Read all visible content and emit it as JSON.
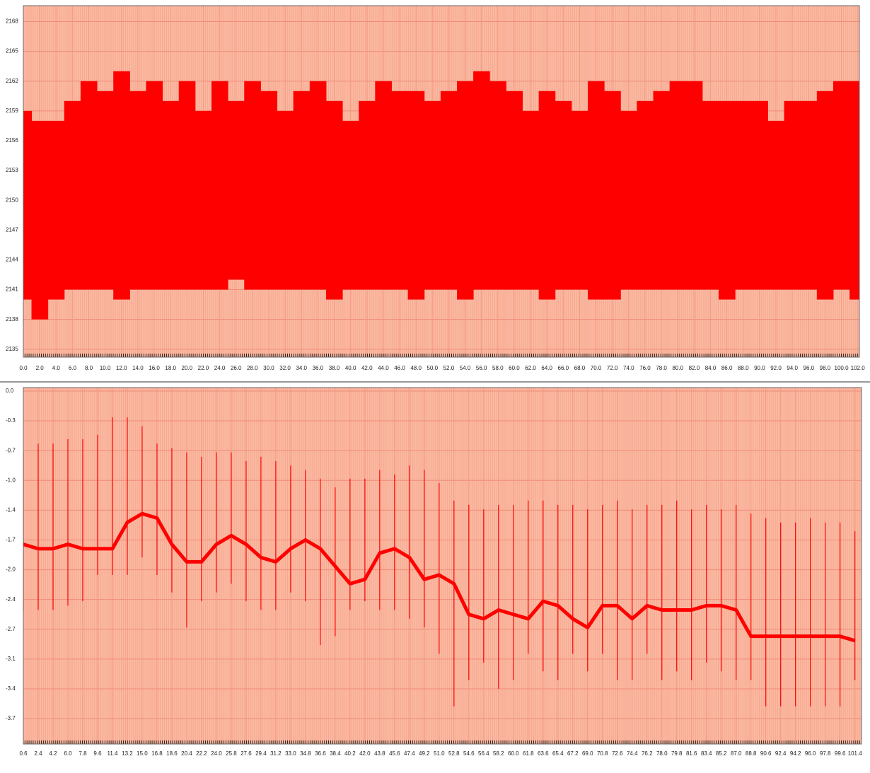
{
  "chart_data": [
    {
      "type": "range",
      "color": "#ff0000",
      "grid": true,
      "xlim": [
        0,
        102.2
      ],
      "ylim": [
        2134.2,
        2169.6
      ],
      "yticks": [
        2135,
        2138,
        2141,
        2144,
        2147,
        2150,
        2153,
        2156,
        2159,
        2162,
        2165,
        2168
      ],
      "xticks": [
        {
          "value": 0,
          "label": "0.0"
        },
        {
          "value": 2,
          "label": "2.0"
        },
        {
          "value": 4,
          "label": "4.0"
        },
        {
          "value": 6,
          "label": "6.0"
        },
        {
          "value": 8,
          "label": "8.0"
        },
        {
          "value": 10,
          "label": "10.0"
        },
        {
          "value": 12,
          "label": "12.0"
        },
        {
          "value": 14,
          "label": "14.0"
        },
        {
          "value": 16,
          "label": "16.0"
        },
        {
          "value": 18,
          "label": "18.0"
        },
        {
          "value": 20,
          "label": "20.0"
        },
        {
          "value": 22,
          "label": "22.0"
        },
        {
          "value": 24,
          "label": "24.0"
        },
        {
          "value": 26,
          "label": "26.0"
        },
        {
          "value": 28,
          "label": "28.0"
        },
        {
          "value": 30,
          "label": "30.0"
        },
        {
          "value": 32,
          "label": "32.0"
        },
        {
          "value": 34,
          "label": "34.0"
        },
        {
          "value": 36,
          "label": "36.0"
        },
        {
          "value": 38,
          "label": "38.0"
        },
        {
          "value": 40,
          "label": "40.0"
        },
        {
          "value": 42,
          "label": "42.0"
        },
        {
          "value": 44,
          "label": "44.0"
        },
        {
          "value": 46,
          "label": "46.0"
        },
        {
          "value": 48,
          "label": "48.0"
        },
        {
          "value": 50,
          "label": "50.0"
        },
        {
          "value": 52,
          "label": "52.0"
        },
        {
          "value": 54,
          "label": "54.0"
        },
        {
          "value": 56,
          "label": "56.0"
        },
        {
          "value": 58,
          "label": "58.0"
        },
        {
          "value": 60,
          "label": "60.0"
        },
        {
          "value": 62,
          "label": "62.0"
        },
        {
          "value": 64,
          "label": "64.0"
        },
        {
          "value": 66,
          "label": "66.0"
        },
        {
          "value": 68,
          "label": "68.0"
        },
        {
          "value": 70,
          "label": "70.0"
        },
        {
          "value": 72,
          "label": "72.0"
        },
        {
          "value": 74,
          "label": "74.0"
        },
        {
          "value": 76,
          "label": "76.0"
        },
        {
          "value": 78,
          "label": "78.0"
        },
        {
          "value": 80,
          "label": "80.0"
        },
        {
          "value": 82,
          "label": "82.0"
        },
        {
          "value": 84,
          "label": "84.0"
        },
        {
          "value": 86,
          "label": "86.0"
        },
        {
          "value": 88,
          "label": "88.0"
        },
        {
          "value": 90,
          "label": "90.0"
        },
        {
          "value": 92,
          "label": "92.0"
        },
        {
          "value": 94,
          "label": "94.0"
        },
        {
          "value": 96,
          "label": "96.0"
        },
        {
          "value": 98,
          "label": "98.0"
        },
        {
          "value": 100,
          "label": "100.0"
        },
        {
          "value": 102,
          "label": "102.0"
        }
      ],
      "x": [
        0,
        2,
        4,
        6,
        8,
        10,
        12,
        14,
        16,
        18,
        20,
        22,
        24,
        26,
        28,
        30,
        32,
        34,
        36,
        38,
        40,
        42,
        44,
        46,
        48,
        50,
        52,
        54,
        56,
        58,
        60,
        62,
        64,
        66,
        68,
        70,
        72,
        74,
        76,
        78,
        80,
        82,
        84,
        86,
        88,
        90,
        92,
        94,
        96,
        98,
        100,
        102
      ],
      "high": [
        2159,
        2158,
        2158,
        2160,
        2162,
        2161,
        2163,
        2161,
        2162,
        2160,
        2162,
        2159,
        2162,
        2160,
        2162,
        2161,
        2159,
        2161,
        2162,
        2160,
        2158,
        2160,
        2162,
        2161,
        2161,
        2160,
        2161,
        2162,
        2163,
        2162,
        2161,
        2159,
        2161,
        2160,
        2159,
        2162,
        2161,
        2159,
        2160,
        2161,
        2162,
        2162,
        2160,
        2160,
        2160,
        2160,
        2158,
        2160,
        2160,
        2161,
        2162,
        2162
      ],
      "low": [
        2140,
        2138,
        2140,
        2141,
        2141,
        2141,
        2140,
        2141,
        2141,
        2141,
        2141,
        2141,
        2141,
        2142,
        2141,
        2141,
        2141,
        2141,
        2141,
        2140,
        2141,
        2141,
        2141,
        2141,
        2140,
        2141,
        2141,
        2140,
        2141,
        2141,
        2141,
        2141,
        2140,
        2141,
        2141,
        2140,
        2140,
        2141,
        2141,
        2141,
        2141,
        2141,
        2141,
        2140,
        2141,
        2141,
        2141,
        2141,
        2141,
        2140,
        2141,
        2140
      ]
    },
    {
      "type": "spike",
      "color": "#ff0000",
      "grid": true,
      "xlim": [
        0.6,
        102.2
      ],
      "ylim": [
        -4.03,
        0.04
      ],
      "yticks": [
        {
          "value": 0,
          "label": "0.0"
        },
        {
          "value": -0.34,
          "label": "-0.3"
        },
        {
          "value": -0.68,
          "label": "-0.7"
        },
        {
          "value": -1.02,
          "label": "-1.0"
        },
        {
          "value": -1.36,
          "label": "-1.4"
        },
        {
          "value": -1.7,
          "label": "-1.7"
        },
        {
          "value": -2.04,
          "label": "-2.0"
        },
        {
          "value": -2.38,
          "label": "-2.4"
        },
        {
          "value": -2.72,
          "label": "-2.7"
        },
        {
          "value": -3.06,
          "label": "-3.1"
        },
        {
          "value": -3.4,
          "label": "-3.4"
        },
        {
          "value": -3.74,
          "label": "-3.7"
        }
      ],
      "xticks": [
        0.6,
        2.4,
        4.2,
        {
          "value": 6,
          "label": "6.0"
        },
        7.8,
        9.6,
        11.4,
        13.2,
        {
          "value": 15,
          "label": "15.0"
        },
        16.8,
        18.6,
        20.4,
        22.2,
        {
          "value": 24,
          "label": "24.0"
        },
        25.8,
        27.6,
        29.4,
        31.2,
        {
          "value": 33,
          "label": "33.0"
        },
        34.8,
        36.6,
        38.4,
        40.2,
        {
          "value": 42,
          "label": "42.0"
        },
        43.8,
        45.6,
        47.4,
        49.2,
        {
          "value": 51,
          "label": "51.0"
        },
        52.8,
        54.6,
        56.4,
        58.2,
        {
          "value": 60,
          "label": "60.0"
        },
        61.8,
        63.6,
        65.4,
        67.2,
        {
          "value": 69,
          "label": "69.0"
        },
        70.8,
        72.6,
        74.4,
        76.2,
        {
          "value": 78,
          "label": "78.0"
        },
        79.8,
        81.6,
        83.4,
        85.2,
        {
          "value": 87,
          "label": "87.0"
        },
        88.8,
        90.6,
        92.4,
        94.2,
        {
          "value": 96,
          "label": "96.0"
        },
        97.8,
        99.6,
        101.4
      ],
      "x": [
        0.6,
        2.4,
        4.2,
        6,
        7.8,
        9.6,
        11.4,
        13.2,
        15,
        16.8,
        18.6,
        20.4,
        22.2,
        24,
        25.8,
        27.6,
        29.4,
        31.2,
        33,
        34.8,
        36.6,
        38.4,
        40.2,
        42,
        43.8,
        45.6,
        47.4,
        49.2,
        51,
        52.8,
        54.6,
        56.4,
        58.2,
        60,
        61.8,
        63.6,
        65.4,
        67.2,
        69,
        70.8,
        72.6,
        74.4,
        76.2,
        78,
        79.8,
        81.6,
        83.4,
        85.2,
        87,
        88.8,
        90.6,
        92.4,
        94.2,
        96,
        97.8,
        99.6,
        101.4
      ],
      "base": [
        -1.75,
        -1.8,
        -1.8,
        -1.75,
        -1.8,
        -1.8,
        -1.8,
        -1.5,
        -1.4,
        -1.45,
        -1.75,
        -1.95,
        -1.95,
        -1.75,
        -1.65,
        -1.75,
        -1.9,
        -1.95,
        -1.8,
        -1.7,
        -1.8,
        -2.0,
        -2.2,
        -2.15,
        -1.85,
        -1.8,
        -1.9,
        -2.15,
        -2.1,
        -2.2,
        -2.55,
        -2.6,
        -2.5,
        -2.55,
        -2.6,
        -2.4,
        -2.45,
        -2.6,
        -2.7,
        -2.45,
        -2.45,
        -2.6,
        -2.45,
        -2.5,
        -2.5,
        -2.5,
        -2.45,
        -2.45,
        -2.5,
        -2.8,
        -2.8,
        -2.8,
        -2.8,
        -2.8,
        -2.8,
        -2.8,
        -2.85
      ],
      "top": [
        -0.7,
        -0.6,
        -0.6,
        -0.55,
        -0.55,
        -0.5,
        -0.3,
        -0.3,
        -0.4,
        -0.6,
        -0.65,
        -0.7,
        -0.75,
        -0.7,
        -0.7,
        -0.8,
        -0.75,
        -0.8,
        -0.85,
        -0.9,
        -1.0,
        -1.1,
        -1.0,
        -1.0,
        -0.9,
        -0.95,
        -0.85,
        -0.9,
        -1.05,
        -1.25,
        -1.3,
        -1.35,
        -1.3,
        -1.3,
        -1.25,
        -1.25,
        -1.3,
        -1.3,
        -1.35,
        -1.3,
        -1.25,
        -1.35,
        -1.3,
        -1.3,
        -1.25,
        -1.35,
        -1.3,
        -1.35,
        -1.3,
        -1.4,
        -1.45,
        -1.5,
        -1.5,
        -1.45,
        -1.5,
        -1.5,
        -1.6
      ],
      "bottom": [
        -2.5,
        -2.5,
        -2.5,
        -2.45,
        -2.4,
        -2.1,
        -2.1,
        -2.1,
        -1.9,
        -2.1,
        -2.3,
        -2.7,
        -2.4,
        -2.3,
        -2.2,
        -2.4,
        -2.5,
        -2.5,
        -2.3,
        -2.4,
        -2.9,
        -2.8,
        -2.5,
        -2.4,
        -2.5,
        -2.5,
        -2.6,
        -2.7,
        -3.0,
        -3.6,
        -3.3,
        -3.1,
        -3.4,
        -3.3,
        -3.0,
        -3.2,
        -3.3,
        -3.0,
        -3.2,
        -3.0,
        -3.3,
        -3.3,
        -3.0,
        -3.3,
        -3.2,
        -3.3,
        -3.1,
        -3.2,
        -3.3,
        -3.3,
        -3.6,
        -3.6,
        -3.6,
        -3.6,
        -3.6,
        -3.6,
        -3.3
      ]
    }
  ]
}
